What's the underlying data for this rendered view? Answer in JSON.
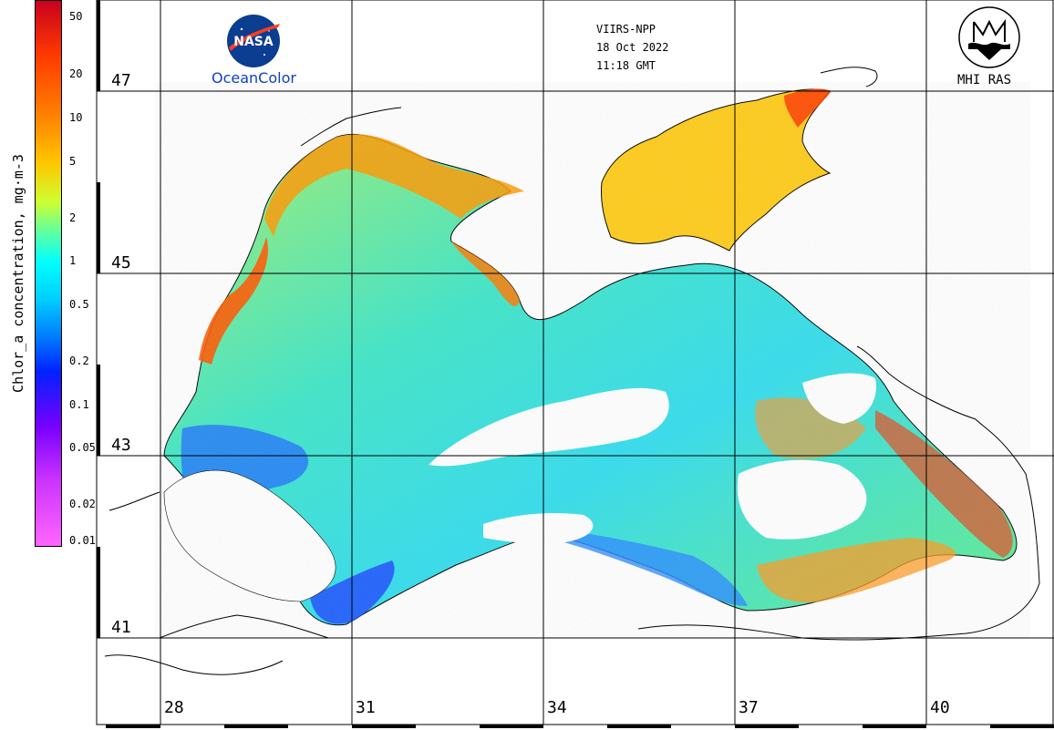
{
  "header": {
    "satellite": "VIIRS-NPP",
    "date": "18 Oct 2022",
    "time": "11:18 GMT"
  },
  "logos": {
    "nasa_icon": "nasa-meatball",
    "nasa_text": "NASA",
    "oceancolor": "OceanColor",
    "mhi_icon": "mhi-emblem",
    "mhi_text": "MHI RAS"
  },
  "colorbar": {
    "label": "Chlor_a concentration, mg·m-3",
    "ticks": [
      "50",
      "20",
      "10",
      "5",
      "2",
      "1",
      "0.5",
      "0.2",
      "0.1",
      "0.05",
      "0.02",
      "0.01"
    ]
  },
  "latitudes": [
    "47",
    "45",
    "43",
    "41"
  ],
  "longitudes": [
    "28",
    "31",
    "34",
    "37",
    "40"
  ],
  "colors": {
    "high": "#c8001e",
    "mid": "#ffd000",
    "low": "#00ffff",
    "very_low": "#0044ff",
    "min": "#ff66ff"
  }
}
